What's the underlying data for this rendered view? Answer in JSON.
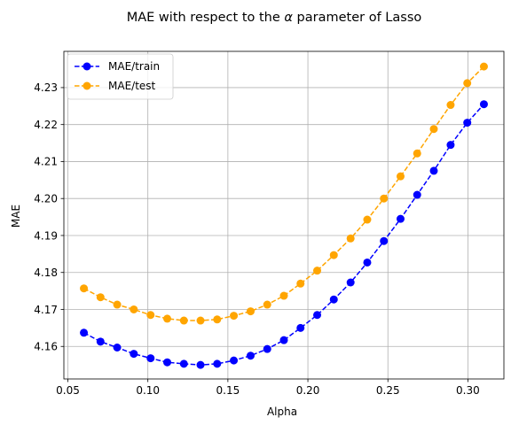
{
  "chart_data": {
    "type": "line",
    "title_prefix": "MAE with respect to the ",
    "title_symbol": "α",
    "title_suffix": " parameter of Lasso",
    "xlabel": "Alpha",
    "ylabel": "MAE",
    "xlim": [
      0.0475,
      0.3225
    ],
    "ylim": [
      4.1512,
      4.2398
    ],
    "xticks": [
      0.05,
      0.1,
      0.15,
      0.2,
      0.25,
      0.3
    ],
    "xtick_labels": [
      "0.05",
      "0.10",
      "0.15",
      "0.20",
      "0.25",
      "0.30"
    ],
    "yticks": [
      4.16,
      4.17,
      4.18,
      4.19,
      4.2,
      4.21,
      4.22,
      4.23
    ],
    "ytick_labels": [
      "4.16",
      "4.17",
      "4.18",
      "4.19",
      "4.20",
      "4.21",
      "4.22",
      "4.23"
    ],
    "grid": true,
    "legend_position": "top-left",
    "x": [
      0.06,
      0.0704,
      0.0808,
      0.0912,
      0.1017,
      0.1121,
      0.1225,
      0.1329,
      0.1433,
      0.1537,
      0.1642,
      0.1746,
      0.185,
      0.1954,
      0.2058,
      0.2162,
      0.2267,
      0.2371,
      0.2475,
      0.2579,
      0.2683,
      0.2787,
      0.2892,
      0.2996,
      0.31
    ],
    "series": [
      {
        "name": "MAE/train",
        "color": "#0000ff",
        "values": [
          4.1637,
          4.1613,
          4.1597,
          4.158,
          4.1568,
          4.1557,
          4.1553,
          4.155,
          4.1553,
          4.1562,
          4.1575,
          4.1593,
          4.1617,
          4.165,
          4.1685,
          4.1727,
          4.1773,
          4.1827,
          4.1885,
          4.1945,
          4.201,
          4.2075,
          4.2145,
          4.2205,
          4.2255
        ]
      },
      {
        "name": "MAE/test",
        "color": "#ffa500",
        "values": [
          4.1757,
          4.1733,
          4.1713,
          4.17,
          4.1685,
          4.1675,
          4.167,
          4.167,
          4.1673,
          4.1683,
          4.1695,
          4.1713,
          4.1737,
          4.177,
          4.1805,
          4.1847,
          4.1892,
          4.1943,
          4.2,
          4.206,
          4.2122,
          4.2188,
          4.2253,
          4.2312,
          4.2357
        ]
      }
    ]
  }
}
